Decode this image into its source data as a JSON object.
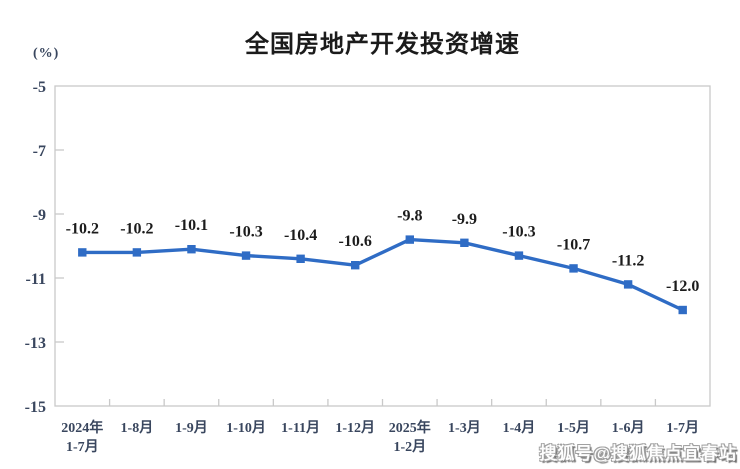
{
  "chart_data": {
    "type": "line",
    "title": "全国房地产开发投资增速",
    "ylabel": "(%)",
    "xlabel": "",
    "categories": [
      [
        "2024年",
        "1-7月"
      ],
      [
        "1-8月"
      ],
      [
        "1-9月"
      ],
      [
        "1-10月"
      ],
      [
        "1-11月"
      ],
      [
        "1-12月"
      ],
      [
        "2025年",
        "1-2月"
      ],
      [
        "1-3月"
      ],
      [
        "1-4月"
      ],
      [
        "1-5月"
      ],
      [
        "1-6月"
      ],
      [
        "1-7月"
      ]
    ],
    "values": [
      -10.2,
      -10.2,
      -10.1,
      -10.3,
      -10.4,
      -10.6,
      -9.8,
      -9.9,
      -10.3,
      -10.7,
      -11.2,
      -12.0
    ],
    "point_labels": [
      "-10.2",
      "-10.2",
      "-10.1",
      "-10.3",
      "-10.4",
      "-10.6",
      "-9.8",
      "-9.9",
      "-10.3",
      "-10.7",
      "-11.2",
      "-12.0"
    ],
    "ylim": [
      -15,
      -5
    ],
    "yticks": [
      -5,
      -7,
      -9,
      -11,
      -13,
      -15
    ],
    "grid": false,
    "legend": "none",
    "colors": {
      "line": "#2f6cc5",
      "marker": "#2f6cc5",
      "axis": "#c9c9c9",
      "axis_text": "#39465e",
      "data_label_text": "#1c1c1c",
      "title_text": "#1b1b1b"
    }
  },
  "watermark": {
    "text": "搜狐号@搜狐焦点宜春站"
  }
}
